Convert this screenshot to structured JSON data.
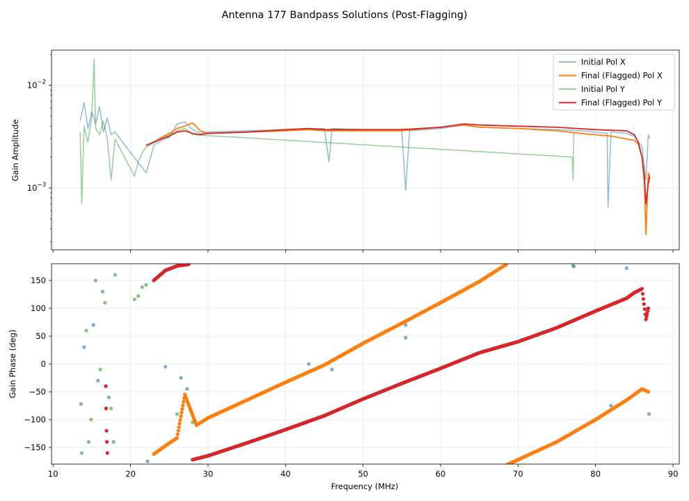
{
  "chart_data": [
    {
      "type": "line",
      "title": "Antenna 177 Bandpass Solutions (Post-Flagging)",
      "xlabel": "",
      "ylabel": "Gain Amplitude",
      "yscale": "log",
      "xlim": [
        9.8,
        90.8
      ],
      "ylim": [
        0.00025,
        0.022
      ],
      "ytick_labels": [
        "10^-3",
        "10^-2"
      ],
      "grid": true,
      "legend": "top-right",
      "series": [
        {
          "name": "Initial Pol X",
          "color": "#1f77b4",
          "x": [
            13.5,
            14.0,
            14.5,
            15.0,
            15.5,
            16.0,
            16.5,
            17.0,
            17.5,
            18.0,
            22.0,
            23.0,
            24.0,
            25.0,
            26.0,
            27.0,
            28.0,
            29.0,
            30.0,
            35.0,
            40.0,
            45.0,
            45.6,
            46.0,
            50.0,
            55.0,
            55.5,
            56.0,
            60.0,
            63.0,
            65.0,
            70.0,
            75.0,
            78.0,
            80.0,
            81.5,
            81.6,
            82.0,
            84.0,
            85.0,
            86.0,
            86.5,
            86.8,
            87.0
          ],
          "values": [
            0.0045,
            0.0068,
            0.0038,
            0.0055,
            0.0042,
            0.0062,
            0.0035,
            0.0048,
            0.0033,
            0.0035,
            0.0014,
            0.0026,
            0.0029,
            0.0031,
            0.0042,
            0.0044,
            0.0037,
            0.0034,
            0.0035,
            0.0036,
            0.0037,
            0.0038,
            0.0018,
            0.0038,
            0.0037,
            0.0036,
            0.00095,
            0.0036,
            0.0038,
            0.0041,
            0.0039,
            0.0038,
            0.0037,
            0.0036,
            0.0035,
            0.0034,
            0.00065,
            0.0035,
            0.0034,
            0.0032,
            0.0025,
            0.0012,
            0.0033,
            0.003
          ]
        },
        {
          "name": "Final (Flagged) Pol X",
          "color": "#ff7f0e",
          "x": [
            22.0,
            23.0,
            24.0,
            25.0,
            26.0,
            27.0,
            28.0,
            29.0,
            30.0,
            35.0,
            40.0,
            43.0,
            45.0,
            50.0,
            55.0,
            60.0,
            63.0,
            65.0,
            70.0,
            75.0,
            78.0,
            80.0,
            82.0,
            84.0,
            85.0,
            85.5,
            86.0,
            86.3,
            86.5,
            86.8,
            87.0
          ],
          "values": [
            0.0026,
            0.0028,
            0.0031,
            0.0034,
            0.0038,
            0.004,
            0.0043,
            0.0036,
            0.0034,
            0.0035,
            0.0036,
            0.0037,
            0.0036,
            0.0036,
            0.0036,
            0.0039,
            0.0041,
            0.0039,
            0.0038,
            0.0036,
            0.0034,
            0.0033,
            0.0032,
            0.003,
            0.0029,
            0.0027,
            0.002,
            0.0011,
            0.00035,
            0.0014,
            0.0013
          ]
        },
        {
          "name": "Initial Pol Y",
          "color": "#2ca02c",
          "x": [
            13.5,
            13.7,
            14.0,
            14.5,
            15.0,
            15.3,
            15.5,
            16.0,
            16.5,
            17.0,
            17.5,
            18.0,
            20.5,
            21.0,
            21.5,
            22.0,
            24.0,
            25.0,
            26.0,
            27.0,
            27.5,
            28.0,
            77.0,
            77.1,
            77.2
          ],
          "values": [
            0.0035,
            0.0007,
            0.004,
            0.0028,
            0.005,
            0.018,
            0.0038,
            0.0033,
            0.0045,
            0.003,
            0.0012,
            0.003,
            0.0013,
            0.0018,
            0.0022,
            0.0025,
            0.003,
            0.0033,
            0.0036,
            0.0038,
            0.0036,
            0.0033,
            0.002,
            0.0012,
            0.0035
          ]
        },
        {
          "name": "Final (Flagged) Pol Y",
          "color": "#d62728",
          "x": [
            22.0,
            23.0,
            24.0,
            25.0,
            26.0,
            27.0,
            28.0,
            29.0,
            30.0,
            35.0,
            40.0,
            43.0,
            45.0,
            50.0,
            55.0,
            60.0,
            63.0,
            65.0,
            70.0,
            75.0,
            80.0,
            84.0,
            85.0,
            85.5,
            86.0,
            86.3,
            86.5,
            86.8,
            87.0
          ],
          "values": [
            0.0026,
            0.0028,
            0.003,
            0.0032,
            0.0035,
            0.0036,
            0.0034,
            0.0033,
            0.0034,
            0.0035,
            0.0037,
            0.0038,
            0.0037,
            0.0037,
            0.0037,
            0.0039,
            0.0042,
            0.0041,
            0.004,
            0.0039,
            0.0037,
            0.0036,
            0.0033,
            0.0028,
            0.002,
            0.0013,
            0.0007,
            0.0011,
            0.0013
          ]
        }
      ]
    },
    {
      "type": "scatter",
      "title": "",
      "xlabel": "Frequency (MHz)",
      "ylabel": "Gain Phase (deg)",
      "xlim": [
        9.8,
        90.8
      ],
      "ylim": [
        -180,
        180
      ],
      "xticks": [
        10,
        20,
        30,
        40,
        50,
        60,
        70,
        80,
        90
      ],
      "yticks": [
        -150,
        -100,
        -50,
        0,
        50,
        100,
        150
      ],
      "grid": true,
      "series": [
        {
          "name": "Initial Pol X",
          "color": "#1f77b4",
          "x": [
            13.6,
            14.0,
            14.6,
            15.2,
            15.8,
            16.4,
            17.2,
            17.8,
            22.2,
            24.5,
            26.5,
            27.3,
            43.0,
            46.0,
            55.5,
            55.5,
            77.2,
            82.0,
            84.0,
            86.9
          ],
          "values": [
            -72,
            30,
            -140,
            70,
            -30,
            130,
            -60,
            -140,
            -175,
            -5,
            -25,
            -45,
            0,
            -10,
            70,
            47,
            175,
            -75,
            172,
            -90
          ]
        },
        {
          "name": "Final (Flagged) Pol X",
          "color": "#ff7f0e",
          "x": [
            23.0,
            24.5,
            26.0,
            27.0,
            28.5,
            30.0,
            35.0,
            40.0,
            45.0,
            50.0,
            55.0,
            60.0,
            65.0,
            68.5,
            68.6,
            70.0,
            75.0,
            80.0,
            84.0,
            85.0,
            86.0,
            86.8
          ],
          "values": [
            -162,
            -147,
            -133,
            -55,
            -110,
            -97,
            -65,
            -33,
            -2,
            37,
            73,
            110,
            148,
            179,
            -181,
            -172,
            -140,
            -100,
            -65,
            -55,
            -45,
            -50
          ]
        },
        {
          "name": "Initial Pol Y",
          "color": "#2ca02c",
          "x": [
            13.7,
            14.3,
            14.9,
            15.5,
            16.1,
            16.7,
            17.5,
            18.0,
            20.5,
            21.0,
            21.5,
            22.0,
            26.0,
            27.0,
            28.0,
            77.1
          ],
          "values": [
            -160,
            60,
            -100,
            150,
            -10,
            110,
            -80,
            160,
            116,
            122,
            138,
            142,
            -90,
            -55,
            -105,
            177
          ]
        },
        {
          "name": "Final (Flagged) Pol Y",
          "color": "#d62728",
          "x": [
            16.8,
            16.9,
            17.0,
            23.0,
            24.5,
            26.0,
            27.5,
            28.0,
            30.0,
            35.0,
            40.0,
            45.0,
            50.0,
            55.0,
            60.0,
            65.0,
            70.0,
            75.0,
            80.0,
            84.0,
            85.0,
            86.0,
            86.5,
            86.8
          ],
          "values": [
            -40,
            -120,
            -160,
            150,
            168,
            176,
            179,
            -172,
            -165,
            -142,
            -118,
            -93,
            -63,
            -35,
            -8,
            20,
            40,
            65,
            95,
            118,
            128,
            135,
            80,
            100
          ]
        }
      ]
    }
  ]
}
